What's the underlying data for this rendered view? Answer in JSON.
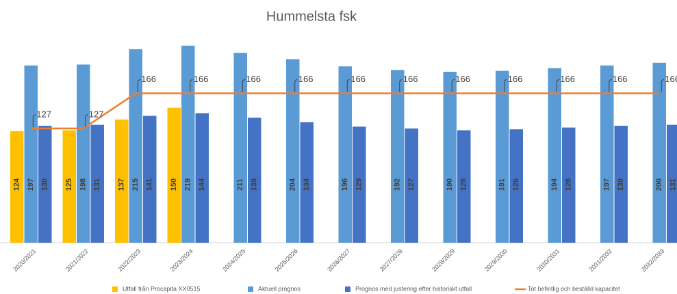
{
  "chart_data": {
    "type": "bar",
    "title": "Hummelsta fsk",
    "categories": [
      "2020/2021",
      "2021/2022",
      "2022/2023",
      "2023/2024",
      "2024/2025",
      "2025/2026",
      "2026/2027",
      "2027/2028",
      "2028/2029",
      "2029/2030",
      "2030/2031",
      "2031/2032",
      "2032/2033"
    ],
    "series": [
      {
        "name": "Utfall från Procapita XX0515",
        "color": "#FFC000",
        "values": [
          124,
          125,
          137,
          150,
          null,
          null,
          null,
          null,
          null,
          null,
          null,
          null,
          null
        ]
      },
      {
        "name": "Aktuell prognos",
        "color": "#5B9BD5",
        "values": [
          197,
          198,
          215,
          219,
          211,
          204,
          196,
          192,
          190,
          191,
          194,
          197,
          200
        ]
      },
      {
        "name": "Prognos med justering efter historiskt utfall",
        "color": "#4472C4",
        "values": [
          130,
          131,
          141,
          144,
          139,
          134,
          129,
          127,
          125,
          126,
          128,
          130,
          131
        ]
      },
      {
        "name": "Tot befintlig och beställd kapacitet",
        "color": "#ED7D31",
        "type": "line",
        "values": [
          127,
          127,
          166,
          166,
          166,
          166,
          166,
          166,
          166,
          166,
          166,
          166,
          166
        ]
      }
    ],
    "ylim": [
      0,
      250
    ],
    "grid": false
  }
}
